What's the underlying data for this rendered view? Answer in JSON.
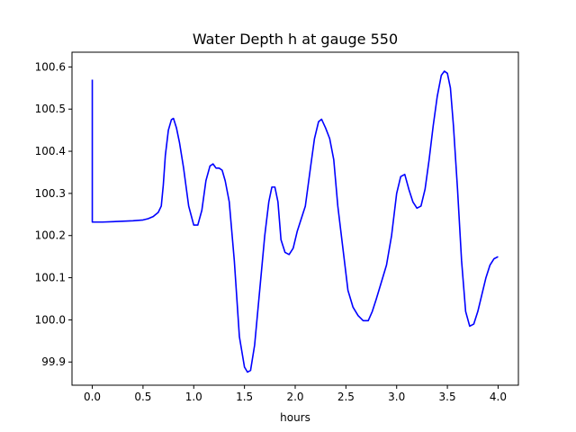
{
  "chart_data": {
    "type": "line",
    "title": "Water Depth h at gauge 550",
    "xlabel": "hours",
    "ylabel": "",
    "xlim": [
      -0.2,
      4.2
    ],
    "ylim": [
      99.845,
      100.635
    ],
    "xticks": [
      0.0,
      0.5,
      1.0,
      1.5,
      2.0,
      2.5,
      3.0,
      3.5,
      4.0
    ],
    "xtick_labels": [
      "0.0",
      "0.5",
      "1.0",
      "1.5",
      "2.0",
      "2.5",
      "3.0",
      "3.5",
      "4.0"
    ],
    "yticks": [
      99.9,
      100.0,
      100.1,
      100.2,
      100.3,
      100.4,
      100.5,
      100.6
    ],
    "ytick_labels": [
      "99.9",
      "100.0",
      "100.1",
      "100.2",
      "100.3",
      "100.4",
      "100.5",
      "100.6"
    ],
    "grid": false,
    "legend": "none",
    "series": [
      {
        "color": "#0000ff",
        "x": [
          0.0,
          0.0,
          0.0,
          0.1,
          0.2,
          0.3,
          0.4,
          0.5,
          0.55,
          0.6,
          0.65,
          0.68,
          0.7,
          0.72,
          0.75,
          0.78,
          0.8,
          0.83,
          0.86,
          0.9,
          0.95,
          1.0,
          1.04,
          1.08,
          1.12,
          1.16,
          1.19,
          1.22,
          1.25,
          1.28,
          1.31,
          1.35,
          1.4,
          1.45,
          1.5,
          1.53,
          1.56,
          1.6,
          1.65,
          1.7,
          1.74,
          1.77,
          1.8,
          1.83,
          1.86,
          1.9,
          1.94,
          1.98,
          2.02,
          2.06,
          2.1,
          2.15,
          2.19,
          2.23,
          2.26,
          2.3,
          2.34,
          2.38,
          2.42,
          2.47,
          2.52,
          2.57,
          2.62,
          2.67,
          2.72,
          2.76,
          2.8,
          2.85,
          2.9,
          2.95,
          3.0,
          3.04,
          3.08,
          3.12,
          3.16,
          3.2,
          3.24,
          3.28,
          3.32,
          3.36,
          3.4,
          3.44,
          3.47,
          3.5,
          3.53,
          3.56,
          3.6,
          3.64,
          3.68,
          3.72,
          3.76,
          3.8,
          3.84,
          3.88,
          3.92,
          3.96,
          4.0
        ],
        "y": [
          100.57,
          100.57,
          100.232,
          100.232,
          100.233,
          100.234,
          100.235,
          100.237,
          100.24,
          100.245,
          100.255,
          100.27,
          100.32,
          100.39,
          100.45,
          100.475,
          100.478,
          100.455,
          100.42,
          100.36,
          100.27,
          100.225,
          100.225,
          100.26,
          100.33,
          100.365,
          100.37,
          100.36,
          100.36,
          100.355,
          100.33,
          100.28,
          100.14,
          99.96,
          99.888,
          99.876,
          99.88,
          99.94,
          100.07,
          100.2,
          100.28,
          100.315,
          100.315,
          100.28,
          100.19,
          100.16,
          100.155,
          100.17,
          100.21,
          100.24,
          100.27,
          100.36,
          100.43,
          100.47,
          100.476,
          100.455,
          100.43,
          100.38,
          100.27,
          100.17,
          100.07,
          100.03,
          100.01,
          99.998,
          99.998,
          100.02,
          100.05,
          100.09,
          100.13,
          100.2,
          100.3,
          100.34,
          100.345,
          100.31,
          100.28,
          100.265,
          100.27,
          100.31,
          100.38,
          100.46,
          100.53,
          100.58,
          100.59,
          100.585,
          100.55,
          100.46,
          100.31,
          100.14,
          100.02,
          99.985,
          99.99,
          100.02,
          100.06,
          100.1,
          100.13,
          100.145,
          100.15
        ]
      }
    ]
  }
}
